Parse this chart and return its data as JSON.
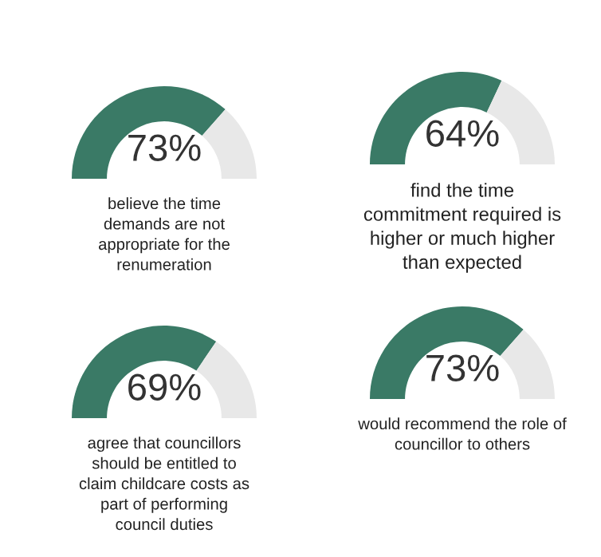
{
  "chart_data": [
    {
      "type": "donut",
      "categories": [
        null,
        null
      ],
      "values": [
        73,
        27
      ],
      "colors": [
        "#3a7a66",
        "#e8e8e8"
      ],
      "value_labels": [
        "73%",
        null
      ],
      "annotations": [
        "believe the time\ndemands are not\nappropriate for the\nrenumeration"
      ]
    },
    {
      "type": "donut",
      "categories": [
        null,
        null
      ],
      "values": [
        64,
        36
      ],
      "colors": [
        "#3a7a66",
        "#e8e8e8"
      ],
      "value_labels": [
        "64%",
        null
      ],
      "annotations": [
        "find the time\ncommitment required is\nhigher or much higher\nthan expected"
      ]
    },
    {
      "type": "donut",
      "categories": [
        null,
        null
      ],
      "values": [
        69,
        31
      ],
      "colors": [
        "#3a7a66",
        "#e8e8e8"
      ],
      "value_labels": [
        "69%",
        null
      ],
      "annotations": [
        "agree that councillors\nshould be entitled to\nclaim childcare costs as\npart of performing\ncouncil duties"
      ]
    },
    {
      "type": "donut",
      "categories": [
        null,
        null
      ],
      "values": [
        73,
        27
      ],
      "colors": [
        "#3a7a66",
        "#e8e8e8"
      ],
      "value_labels": [
        "73%",
        null
      ],
      "annotations": [
        "would recommend the role of\ncouncillor to others"
      ]
    }
  ]
}
